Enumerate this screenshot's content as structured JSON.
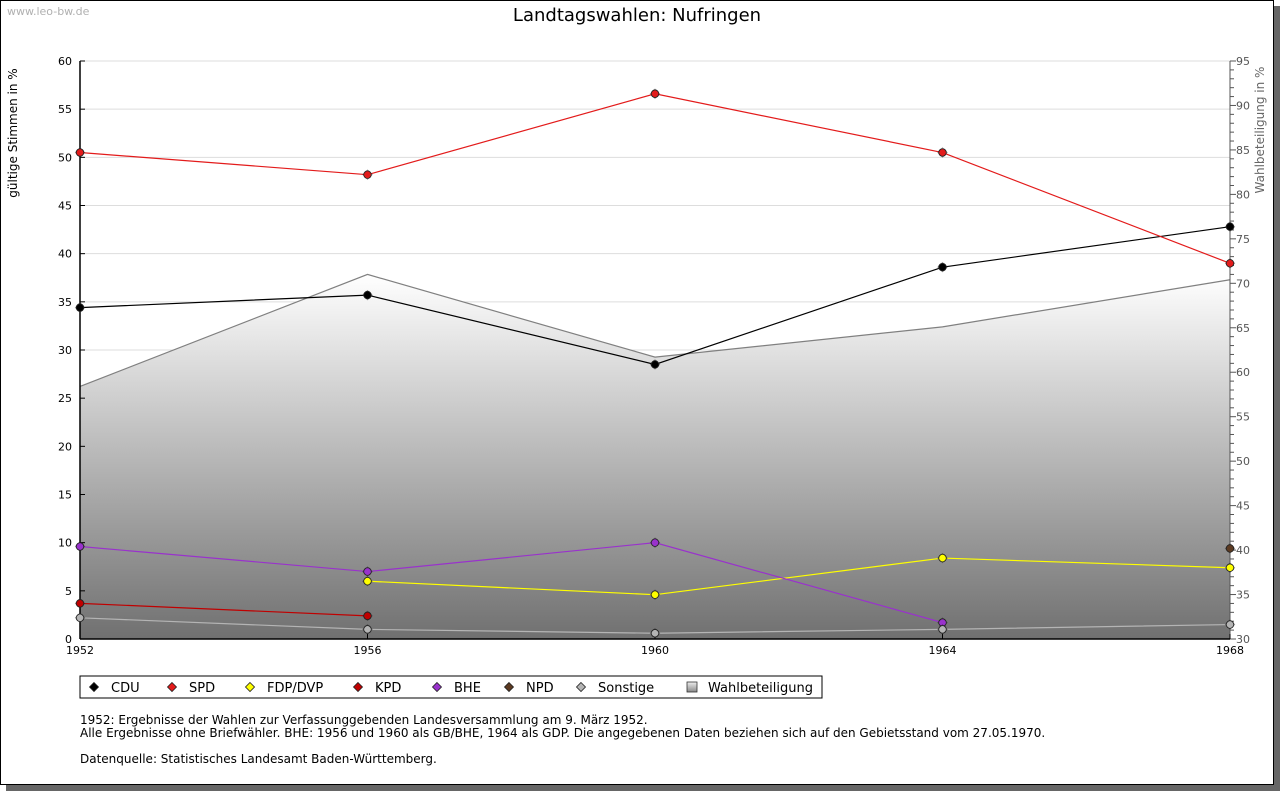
{
  "watermark": "www.leo-bw.de",
  "chart_data": {
    "type": "line",
    "title": "Landtagswahlen: Nufringen",
    "xlabel": "",
    "ylabel": "gültige Stimmen in %",
    "y2label": "Wahlbeteiligung in %",
    "categories": [
      "1952",
      "1956",
      "1960",
      "1964",
      "1968"
    ],
    "ylim": [
      0,
      60
    ],
    "yticks": [
      0,
      5,
      10,
      15,
      20,
      25,
      30,
      35,
      40,
      45,
      50,
      55,
      60
    ],
    "y2lim": [
      30,
      95
    ],
    "y2ticks": [
      30,
      35,
      40,
      45,
      50,
      55,
      60,
      65,
      70,
      75,
      80,
      85,
      90,
      95
    ],
    "grid": true,
    "legend_position": "bottom-left",
    "series": [
      {
        "name": "CDU",
        "color": "#000000",
        "values": [
          34.4,
          35.7,
          28.5,
          38.6,
          42.8
        ]
      },
      {
        "name": "SPD",
        "color": "#e31b1b",
        "values": [
          50.5,
          48.2,
          56.6,
          50.5,
          39.0
        ]
      },
      {
        "name": "FDP/DVP",
        "color": "#ffff00",
        "values": [
          null,
          6.0,
          4.6,
          8.4,
          7.4
        ]
      },
      {
        "name": "KPD",
        "color": "#c00000",
        "values": [
          3.7,
          2.4,
          null,
          null,
          null
        ]
      },
      {
        "name": "BHE",
        "color": "#9932cc",
        "values": [
          9.6,
          7.0,
          10.0,
          1.7,
          null
        ]
      },
      {
        "name": "NPD",
        "color": "#5c3a21",
        "values": [
          null,
          null,
          null,
          null,
          9.4
        ]
      },
      {
        "name": "Sonstige",
        "color": "#b4b4b4",
        "values": [
          2.2,
          1.0,
          0.6,
          1.0,
          1.5
        ]
      }
    ],
    "area_series": {
      "name": "Wahlbeteiligung",
      "axis": "right",
      "color": "#808080",
      "values": [
        58.4,
        71.0,
        61.7,
        65.1,
        70.4
      ]
    }
  },
  "notes": [
    "1952: Ergebnisse der Wahlen zur Verfassunggebenden Landesversammlung am 9. März 1952.",
    "Alle Ergebnisse ohne Briefwähler. BHE: 1956 und 1960 als GB/BHE, 1964 als GDP. Die angegebenen Daten beziehen sich auf den Gebietsstand vom 27.05.1970.",
    "Datenquelle: Statistisches Landesamt Baden-Württemberg."
  ]
}
